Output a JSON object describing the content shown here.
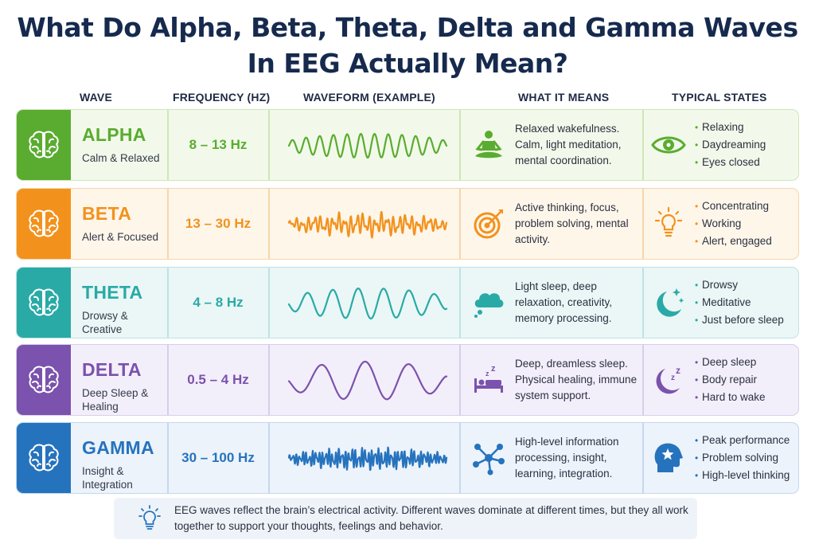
{
  "title_line1": "What Do Alpha, Beta, Theta, Delta and Gamma Waves",
  "title_line2": "In EEG Actually Mean?",
  "headers": {
    "wave": "WAVE",
    "frequency": "FREQUENCY (HZ)",
    "waveform": "WAVEFORM (EXAMPLE)",
    "meaning": "WHAT IT MEANS",
    "states": "TYPICAL STATES"
  },
  "rows": [
    {
      "name": "ALPHA",
      "subtitle": "Calm & Relaxed",
      "frequency": "8 – 13 Hz",
      "meaning": "Relaxed wakefulness. Calm, light meditation, mental coordination.",
      "meaning_icon": "meditation-person-icon",
      "state_icon": "eye-icon",
      "states": [
        "Relaxing",
        "Daydreaming",
        "Eyes closed"
      ],
      "color": "#5aac30",
      "bg": "#f2f9ea",
      "border": "#cfe6b8"
    },
    {
      "name": "BETA",
      "subtitle": "Alert & Focused",
      "frequency": "13 – 30 Hz",
      "meaning": "Active thinking, focus, problem solving, mental activity.",
      "meaning_icon": "target-icon",
      "state_icon": "lightbulb-icon",
      "states": [
        "Concentrating",
        "Working",
        "Alert, engaged"
      ],
      "color": "#f2921d",
      "bg": "#fff6ea",
      "border": "#f5d6ab"
    },
    {
      "name": "THETA",
      "subtitle": "Drowsy & Creative",
      "frequency": "4 – 8 Hz",
      "meaning": "Light sleep, deep relaxation, creativity, memory processing.",
      "meaning_icon": "thought-cloud-icon",
      "state_icon": "moon-stars-icon",
      "states": [
        "Drowsy",
        "Meditative",
        "Just before sleep"
      ],
      "color": "#2aaaa6",
      "bg": "#eaf7f6",
      "border": "#bfe3e0"
    },
    {
      "name": "DELTA",
      "subtitle": "Deep Sleep & Healing",
      "frequency": "0.5 – 4 Hz",
      "meaning": "Deep, dreamless sleep. Physical healing, immune system support.",
      "meaning_icon": "bed-sleep-icon",
      "state_icon": "moon-zz-icon",
      "states": [
        "Deep sleep",
        "Body repair",
        "Hard to wake"
      ],
      "color": "#7b52ad",
      "bg": "#f3effa",
      "border": "#d9cdea"
    },
    {
      "name": "GAMMA",
      "subtitle": "Insight & Integration",
      "frequency": "30 – 100 Hz",
      "meaning": "High-level information processing, insight, learning, integration.",
      "meaning_icon": "network-icon",
      "state_icon": "head-star-icon",
      "states": [
        "Peak performance",
        "Problem solving",
        "High-level thinking"
      ],
      "color": "#2673bd",
      "bg": "#ecf3fb",
      "border": "#c4d8ee"
    }
  ],
  "footer": {
    "icon": "lightbulb-icon",
    "text": "EEG waves reflect the brain’s electrical activity. Different waves dominate at different times, but they all work together to support your thoughts, feelings and behavior."
  }
}
